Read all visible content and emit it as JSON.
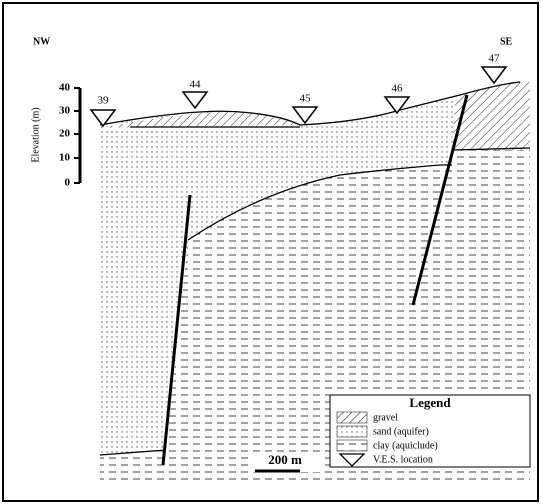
{
  "directions": {
    "left": "NW",
    "right": "SE"
  },
  "axis": {
    "label": "Elevation (m)",
    "ticks": [
      40,
      30,
      20,
      10,
      0
    ]
  },
  "ves_points": [
    {
      "label": "39"
    },
    {
      "label": "44"
    },
    {
      "label": "45"
    },
    {
      "label": "46"
    },
    {
      "label": "47"
    }
  ],
  "legend": {
    "title": "Legend",
    "items": [
      {
        "label": "gravel"
      },
      {
        "label": "sand (aquifer)"
      },
      {
        "label": "clay (aquiclude)"
      },
      {
        "label": "V.E.S. location"
      }
    ]
  },
  "scale_bar": {
    "label": "200 m"
  }
}
